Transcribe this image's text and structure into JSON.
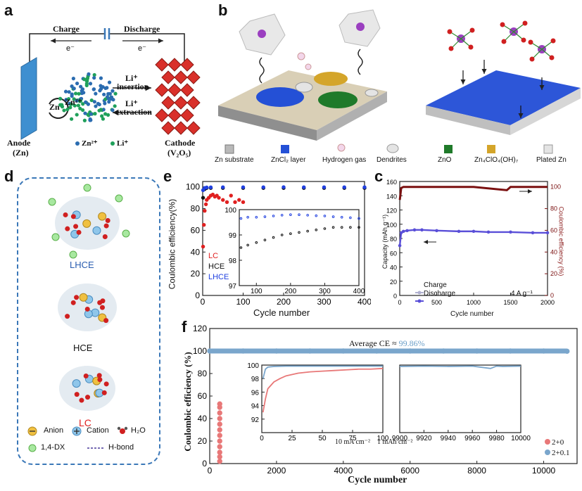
{
  "panels": {
    "a": {
      "letter": "a",
      "charge": "Charge",
      "discharge": "Discharge",
      "electron_left": "e⁻",
      "electron_right": "e⁻",
      "zn": "Zn",
      "zn2": "Zn²⁺",
      "li_insertion": "Li⁺",
      "insertion": "insertion",
      "li_extraction": "Li⁺",
      "extraction": "extraction",
      "anode": "Anode",
      "anode_sub": "(Zn)",
      "cathode": "Cathode",
      "cathode_sub": "(V₂O₅)",
      "legend_zn": "Zn²⁺",
      "legend_li": "Li⁺",
      "colors": {
        "zn_dot": "#2b6cb0",
        "li_dot": "#1fa05a",
        "cathode": "#d9302a",
        "anode": "#3e8fd0"
      }
    },
    "b": {
      "letter": "b",
      "legend": [
        {
          "label": "Zn substrate",
          "color": "#b9b9b9"
        },
        {
          "label": "ZnCl₂ layer",
          "color": "#2450d6"
        },
        {
          "label": "Hydrogen gas",
          "color": "#e8b6d6"
        },
        {
          "label": "Dendrites",
          "color": "#dcdcdc"
        },
        {
          "label": "ZnO",
          "color": "#1f7a2a"
        },
        {
          "label": "Zn₄ClO₄(OH)₇",
          "color": "#d4a52a"
        },
        {
          "label": "Plated Zn",
          "color": "#e4e4e4"
        }
      ]
    },
    "d": {
      "letter": "d",
      "lhce": "LHCE",
      "hce": "HCE",
      "lc": "LC",
      "legend_anion": "Anion",
      "legend_cation": "Cation",
      "legend_h2o": "H₂O",
      "legend_dx": "1,4-DX",
      "legend_hbond": "H-bond"
    },
    "e": {
      "letter": "e",
      "ylabel": "Coulombic efficiency(%)",
      "xlabel": "Cycle number",
      "series_lc": "LC",
      "series_hce": "HCE",
      "series_lhce": "LHCE"
    },
    "c": {
      "letter": "c",
      "ylabel_left": "Capacity (mAh g⁻¹)",
      "ylabel_right": "Coulombic efficiency (%)",
      "xlabel": "Cycle number",
      "legend_charge": "Charge",
      "legend_discharge": "Discharge",
      "rate": "4 A g⁻¹"
    },
    "f": {
      "letter": "f",
      "ylabel": "Coulombic efficiency (%)",
      "xlabel": "Cycle number",
      "average": "Average CE ≈",
      "average_value": "99.86%",
      "condition": "10 mA cm⁻²    1 mAh cm⁻²",
      "legend_a": "2+0",
      "legend_b": "2+0.1"
    }
  },
  "chart_data": [
    {
      "type": "scatter",
      "id": "e-main",
      "xlabel": "Cycle number",
      "ylabel": "Coulombic efficiency(%)",
      "xlim": [
        0,
        400
      ],
      "ylim": [
        0,
        105
      ],
      "xticks": [
        0,
        100,
        200,
        300,
        400
      ],
      "yticks": [
        0,
        20,
        40,
        60,
        80,
        100
      ],
      "series": [
        {
          "name": "LC",
          "color": "#e02020",
          "x": [
            1,
            3,
            5,
            8,
            10,
            15,
            20,
            25,
            30,
            35,
            40,
            50,
            60,
            70,
            80,
            90,
            100
          ],
          "y": [
            45,
            65,
            78,
            84,
            88,
            90,
            92,
            93,
            91,
            92,
            90,
            88,
            86,
            92,
            86,
            88,
            86
          ]
        },
        {
          "name": "HCE",
          "color": "#111111",
          "x": [
            1,
            5,
            10,
            20,
            50,
            100,
            150,
            200,
            250,
            300,
            350,
            400
          ],
          "y": [
            90,
            98,
            99,
            99,
            99,
            99,
            99,
            99,
            99,
            99,
            99,
            99
          ]
        },
        {
          "name": "LHCE",
          "color": "#2040e0",
          "x": [
            1,
            5,
            10,
            20,
            50,
            100,
            150,
            200,
            250,
            300,
            350,
            400
          ],
          "y": [
            97,
            99,
            99.5,
            99.6,
            99.7,
            99.7,
            99.7,
            99.8,
            99.7,
            99.7,
            99.7,
            99.7
          ]
        }
      ]
    },
    {
      "type": "scatter",
      "id": "e-inset",
      "xlim": [
        50,
        400
      ],
      "ylim": [
        97,
        100
      ],
      "xticks": [
        100,
        200,
        300,
        400
      ],
      "yticks": [
        97,
        98,
        99,
        100
      ],
      "series": [
        {
          "name": "HCE",
          "color": "#111111",
          "x": [
            55,
            75,
            100,
            125,
            150,
            175,
            200,
            225,
            250,
            275,
            300,
            325,
            350,
            375,
            400
          ],
          "y": [
            98.5,
            98.6,
            98.7,
            98.8,
            98.9,
            99.0,
            99.05,
            99.1,
            99.15,
            99.2,
            99.25,
            99.3,
            99.3,
            99.3,
            99.3
          ]
        },
        {
          "name": "LHCE",
          "color": "#2040e0",
          "x": [
            55,
            75,
            100,
            125,
            150,
            175,
            200,
            225,
            250,
            275,
            300,
            325,
            350,
            375,
            400
          ],
          "y": [
            99.65,
            99.7,
            99.7,
            99.72,
            99.75,
            99.78,
            99.8,
            99.8,
            99.78,
            99.76,
            99.75,
            99.72,
            99.7,
            99.68,
            99.65
          ]
        }
      ]
    },
    {
      "type": "line",
      "id": "c",
      "xlabel": "Cycle number",
      "ylabel": "Capacity (mAh g⁻¹)",
      "ylabel_right": "Coulombic efficiency (%)",
      "xlim": [
        0,
        2000
      ],
      "ylim": [
        0,
        160
      ],
      "ylim_right": [
        0,
        105
      ],
      "xticks": [
        0,
        500,
        1000,
        1500,
        2000
      ],
      "yticks": [
        0,
        20,
        40,
        60,
        80,
        100,
        120,
        140,
        160
      ],
      "yticks_right": [
        0,
        20,
        40,
        60,
        80,
        100
      ],
      "series": [
        {
          "name": "Discharge",
          "color": "#5a4fd8",
          "x": [
            1,
            20,
            50,
            100,
            200,
            300,
            500,
            800,
            1000,
            1200,
            1500,
            1800,
            2000
          ],
          "y": [
            70,
            88,
            90,
            91,
            92,
            92,
            91,
            90,
            90,
            89,
            89,
            88,
            88
          ]
        },
        {
          "name": "Coulombic efficiency",
          "color": "#7a1010",
          "x": [
            1,
            20,
            50,
            100,
            500,
            1000,
            1450,
            1500,
            2000
          ],
          "y": [
            88,
            99,
            100,
            100,
            100,
            100,
            97,
            100,
            100
          ]
        }
      ]
    },
    {
      "type": "scatter",
      "id": "f-main",
      "xlabel": "Cycle number",
      "ylabel": "Coulombic efficiency (%)",
      "xlim": [
        0,
        11000
      ],
      "ylim": [
        0,
        120
      ],
      "xticks": [
        0,
        2000,
        4000,
        6000,
        8000,
        10000
      ],
      "yticks": [
        0,
        20,
        40,
        60,
        80,
        100,
        120
      ],
      "series": [
        {
          "name": "2+0",
          "color": "#e87878",
          "x": [
            300,
            300,
            300,
            300,
            300,
            300,
            300,
            300,
            300,
            300,
            300,
            300
          ],
          "y": [
            2,
            6,
            10,
            15,
            20,
            25,
            30,
            35,
            40,
            45,
            50,
            53
          ]
        },
        {
          "name": "2+0.1",
          "color": "#7aa6cc",
          "x": [
            0,
            1000,
            2000,
            3000,
            4000,
            5000,
            6000,
            7000,
            8000,
            9000,
            10000,
            10700
          ],
          "y": [
            100,
            100,
            100,
            100,
            100,
            100,
            100,
            100,
            100,
            100,
            100,
            99.8
          ]
        }
      ]
    },
    {
      "type": "line",
      "id": "f-inset-left",
      "xlim": [
        0,
        100
      ],
      "ylim": [
        90,
        100
      ],
      "xticks": [
        0,
        25,
        50,
        75,
        100
      ],
      "yticks": [
        92,
        94,
        96,
        98,
        100
      ],
      "series": [
        {
          "name": "2+0",
          "color": "#e87878",
          "x": [
            1,
            3,
            5,
            10,
            15,
            20,
            30,
            40,
            50,
            60,
            70,
            80,
            90,
            100
          ],
          "y": [
            93,
            95,
            96.5,
            97.5,
            98,
            98.4,
            98.8,
            99,
            99.1,
            99.2,
            99.3,
            99.4,
            99.4,
            99.5
          ]
        },
        {
          "name": "2+0.1",
          "color": "#7aa6cc",
          "x": [
            1,
            3,
            5,
            10,
            20,
            40,
            60,
            80,
            100
          ],
          "y": [
            98,
            99.4,
            99.7,
            99.8,
            99.85,
            99.85,
            99.85,
            99.85,
            99.85
          ]
        }
      ]
    },
    {
      "type": "line",
      "id": "f-inset-right",
      "xlim": [
        9900,
        10000
      ],
      "ylim": [
        90,
        100
      ],
      "xticks": [
        9900,
        9920,
        9940,
        9960,
        9980,
        10000
      ],
      "series": [
        {
          "name": "2+0.1",
          "color": "#7aa6cc",
          "x": [
            9900,
            9920,
            9940,
            9960,
            9975,
            9980,
            9985,
            10000
          ],
          "y": [
            99.8,
            99.85,
            99.8,
            99.85,
            99.5,
            99.85,
            99.8,
            99.85
          ]
        }
      ]
    }
  ]
}
